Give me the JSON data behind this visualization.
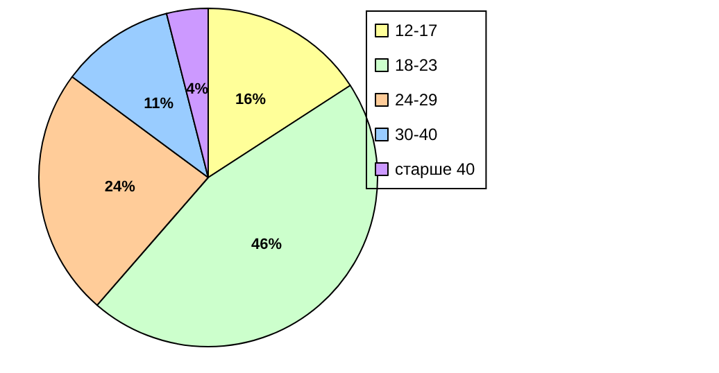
{
  "chart_data": {
    "type": "pie",
    "categories": [
      "12-17",
      "18-23",
      "24-29",
      "30-40",
      "старше 40"
    ],
    "values": [
      16,
      46,
      24,
      11,
      4
    ],
    "value_labels": [
      "16%",
      "46%",
      "24%",
      "11%",
      "4%"
    ],
    "colors": [
      "#ffff99",
      "#ccffcc",
      "#ffcc99",
      "#99ccff",
      "#cc99ff"
    ],
    "legend": "right"
  }
}
